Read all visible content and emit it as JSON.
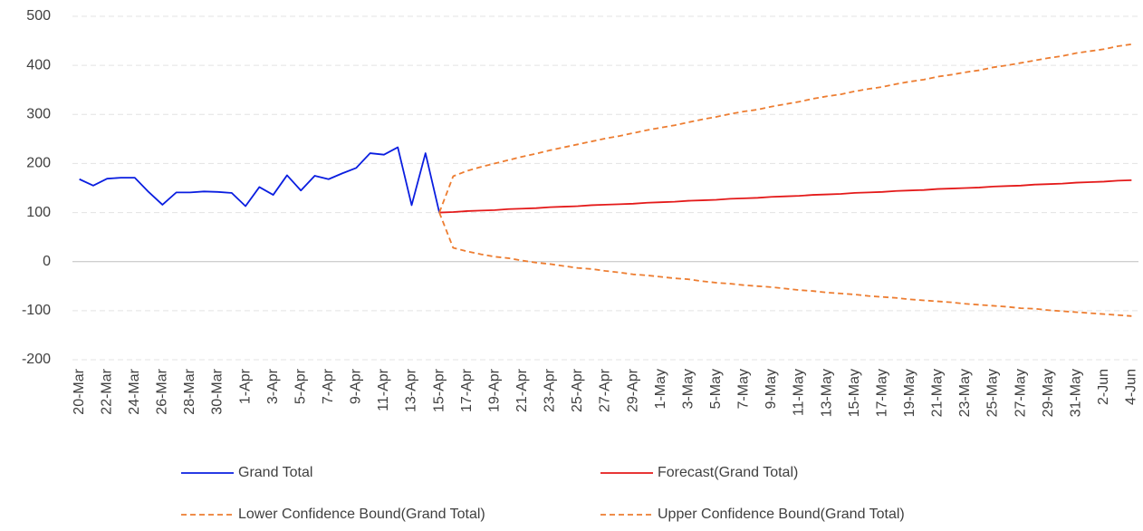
{
  "chart_data": {
    "type": "line",
    "categories": [
      "20-Mar",
      null,
      "22-Mar",
      null,
      "24-Mar",
      null,
      "26-Mar",
      null,
      "28-Mar",
      null,
      "30-Mar",
      null,
      "1-Apr",
      null,
      "3-Apr",
      null,
      "5-Apr",
      null,
      "7-Apr",
      null,
      "9-Apr",
      null,
      "11-Apr",
      null,
      "13-Apr",
      null,
      "15-Apr",
      null,
      "17-Apr",
      null,
      "19-Apr",
      null,
      "21-Apr",
      null,
      "23-Apr",
      null,
      "25-Apr",
      null,
      "27-Apr",
      null,
      "29-Apr",
      null,
      "1-May",
      null,
      "3-May",
      null,
      "5-May",
      null,
      "7-May",
      null,
      "9-May",
      null,
      "11-May",
      null,
      "13-May",
      null,
      "15-May",
      null,
      "17-May",
      null,
      "19-May",
      null,
      "21-May",
      null,
      "23-May",
      null,
      "25-May",
      null,
      "27-May",
      null,
      "29-May",
      null,
      "31-May",
      null,
      "2-Jun",
      null,
      "4-Jun"
    ],
    "series": [
      {
        "name": "Grand Total",
        "color": "#0a1ee0",
        "dashed": false,
        "values": [
          168,
          155,
          169,
          171,
          171,
          142,
          116,
          141,
          141,
          143,
          142,
          140,
          113,
          152,
          136,
          176,
          145,
          175,
          168,
          180,
          191,
          221,
          218,
          233,
          115,
          221,
          100,
          null,
          null,
          null,
          null,
          null,
          null,
          null,
          null,
          null,
          null,
          null,
          null,
          null,
          null,
          null,
          null,
          null,
          null,
          null,
          null,
          null,
          null,
          null,
          null,
          null,
          null,
          null,
          null,
          null,
          null,
          null,
          null,
          null,
          null,
          null,
          null,
          null,
          null,
          null,
          null,
          null,
          null,
          null,
          null,
          null,
          null,
          null,
          null,
          null,
          null
        ]
      },
      {
        "name": "Forecast(Grand Total)",
        "color": "#e41a1a",
        "dashed": false,
        "values": [
          null,
          null,
          null,
          null,
          null,
          null,
          null,
          null,
          null,
          null,
          null,
          null,
          null,
          null,
          null,
          null,
          null,
          null,
          null,
          null,
          null,
          null,
          null,
          null,
          null,
          null,
          100,
          101,
          103,
          104,
          105,
          107,
          108,
          109,
          111,
          112,
          113,
          115,
          116,
          117,
          118,
          120,
          121,
          122,
          124,
          125,
          126,
          128,
          129,
          130,
          132,
          133,
          134,
          136,
          137,
          138,
          140,
          141,
          142,
          144,
          145,
          146,
          148,
          149,
          150,
          151,
          153,
          154,
          155,
          157,
          158,
          159,
          161,
          162,
          163,
          165,
          166
        ]
      },
      {
        "name": "Lower Confidence Bound(Grand Total)",
        "color": "#ed7d31",
        "dashed": true,
        "values": [
          null,
          null,
          null,
          null,
          null,
          null,
          null,
          null,
          null,
          null,
          null,
          null,
          null,
          null,
          null,
          null,
          null,
          null,
          null,
          null,
          null,
          null,
          null,
          null,
          null,
          null,
          100,
          28,
          21,
          15,
          10,
          7,
          2,
          -2,
          -5,
          -9,
          -13,
          -15,
          -19,
          -22,
          -26,
          -28,
          -31,
          -34,
          -36,
          -40,
          -43,
          -45,
          -48,
          -50,
          -52,
          -55,
          -58,
          -60,
          -63,
          -65,
          -67,
          -70,
          -72,
          -74,
          -77,
          -79,
          -81,
          -83,
          -86,
          -88,
          -90,
          -92,
          -95,
          -96,
          -99,
          -101,
          -103,
          -105,
          -107,
          -109,
          -111
        ]
      },
      {
        "name": "Upper Confidence Bound(Grand Total)",
        "color": "#ed7d31",
        "dashed": true,
        "values": [
          null,
          null,
          null,
          null,
          null,
          null,
          null,
          null,
          null,
          null,
          null,
          null,
          null,
          null,
          null,
          null,
          null,
          null,
          null,
          null,
          null,
          null,
          null,
          null,
          null,
          null,
          100,
          174,
          185,
          193,
          200,
          207,
          214,
          220,
          227,
          233,
          239,
          245,
          251,
          256,
          262,
          268,
          273,
          278,
          284,
          290,
          295,
          301,
          306,
          310,
          316,
          321,
          326,
          332,
          337,
          341,
          347,
          352,
          356,
          362,
          367,
          371,
          377,
          381,
          386,
          390,
          396,
          400,
          405,
          410,
          415,
          419,
          425,
          429,
          433,
          439,
          443
        ]
      }
    ],
    "ylim": [
      -200,
      500
    ],
    "yticks": [
      -200,
      -100,
      0,
      100,
      200,
      300,
      400,
      500
    ],
    "grid": true,
    "legend": "bottom"
  }
}
